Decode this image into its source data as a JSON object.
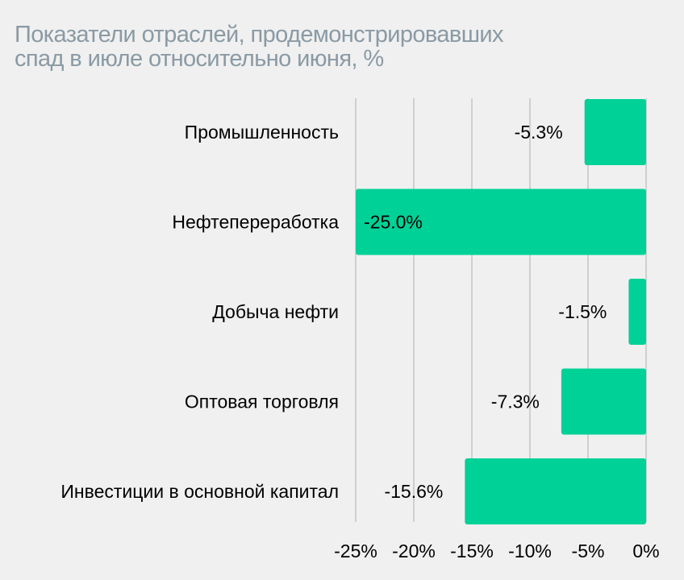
{
  "colors": {
    "background": "#f0f0f0",
    "title": "#8a9aa4",
    "bar": "#00d197",
    "grid": "#c4c4c4",
    "text": "#000000"
  },
  "chart_data": {
    "type": "bar",
    "orientation": "horizontal",
    "title_lines": [
      "Показатели отраслей, продемонстрировавших",
      "спад в июле относительно июня, %"
    ],
    "categories": [
      "Промышленность",
      "Нефтепереработка",
      "Добыча нефти",
      "Оптовая торговля",
      "Инвестиции в основной капитал"
    ],
    "values": [
      -5.3,
      -25.0,
      -1.5,
      -7.3,
      -15.6
    ],
    "value_labels": [
      "-5.3%",
      "-25.0%",
      "-1.5%",
      "-7.3%",
      "-15.6%"
    ],
    "xlim": [
      -25,
      0
    ],
    "x_ticks": [
      -25,
      -20,
      -15,
      -10,
      -5,
      0
    ],
    "x_tick_labels": [
      "-25%",
      "-20%",
      "-15%",
      "-10%",
      "-5%",
      "0%"
    ],
    "grid": true,
    "legend": "none"
  }
}
